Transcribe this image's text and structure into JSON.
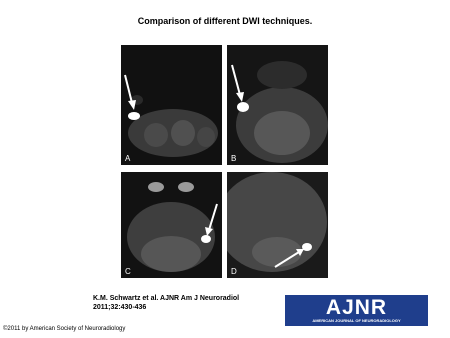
{
  "header": {
    "title": "Comparison of different DWI techniques."
  },
  "panels": [
    {
      "label": "A"
    },
    {
      "label": "B"
    },
    {
      "label": "C"
    },
    {
      "label": "D"
    }
  ],
  "citation": "K.M. Schwartz et al. AJNR Am J Neuroradiol 2011;32:430-436",
  "logo": {
    "title": "AJNR",
    "subtitle": "AMERICAN JOURNAL OF NEURORADIOLOGY"
  },
  "footer": {
    "copyright": "©2011 by American Society of Neuroradiology"
  }
}
